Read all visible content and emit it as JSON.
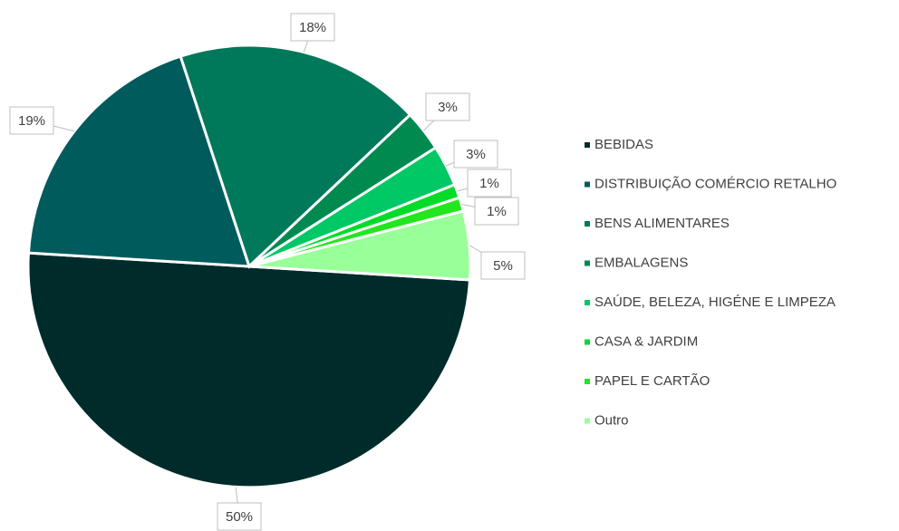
{
  "chart_data": {
    "type": "pie",
    "categories": [
      "BEBIDAS",
      "DISTRIBUIÇÃO COMÉRCIO RETALHO",
      "BENS ALIMENTARES",
      "EMBALAGENS",
      "SAÚDE, BELEZA, HIGÉNE E LIMPEZA",
      "CASA & JARDIM",
      "PAPEL E CARTÃO",
      "Outro"
    ],
    "values": [
      50,
      19,
      18,
      3,
      3,
      1,
      1,
      5
    ],
    "value_labels": [
      "50%",
      "19%",
      "18%",
      "3%",
      "3%",
      "1%",
      "1%",
      "5%"
    ],
    "colors": [
      "#002b2b",
      "#005b5c",
      "#00785a",
      "#008a50",
      "#00c864",
      "#00dc28",
      "#22e61e",
      "#99ff99"
    ],
    "legend": "right"
  }
}
